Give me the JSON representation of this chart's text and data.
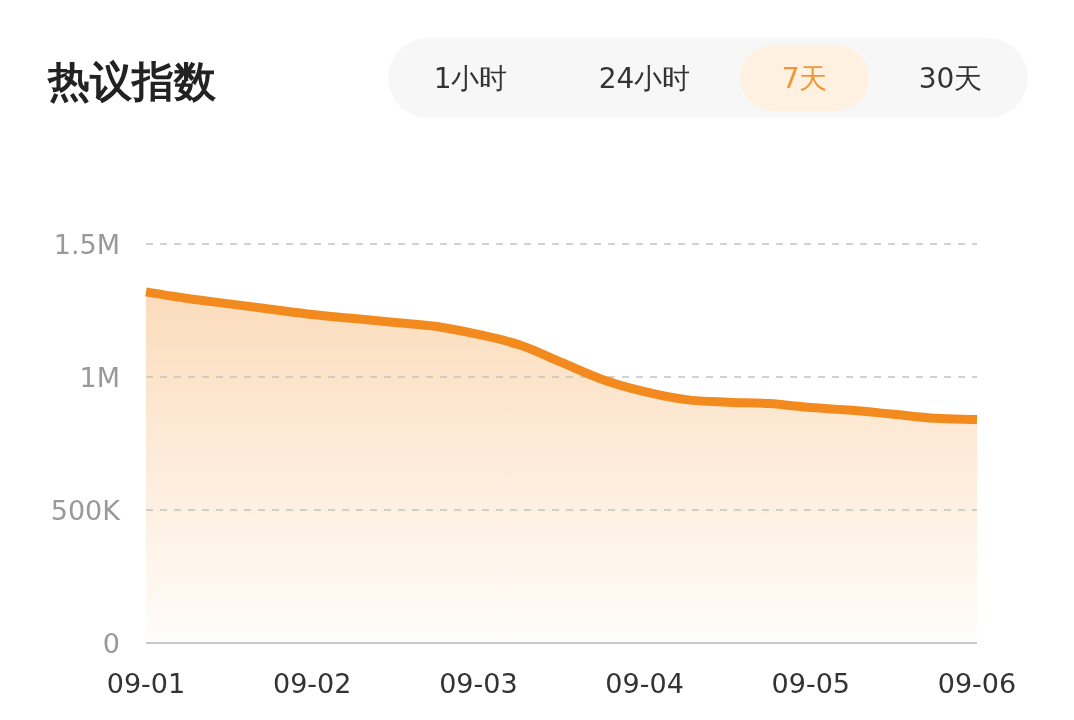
{
  "chart_data": {
    "type": "area",
    "title": "热议指数",
    "annotations": [
      "1小时",
      "24小时",
      "7天",
      "30天"
    ],
    "categories": [
      "09-01",
      null,
      null,
      null,
      "09-02",
      null,
      null,
      null,
      "09-03",
      null,
      null,
      null,
      "09-04",
      null,
      null,
      null,
      "09-05",
      null,
      null,
      null,
      "09-06"
    ],
    "ylim": [
      0,
      1500000
    ],
    "yticks": [
      0,
      {
        "value": 500000,
        "label": "500K"
      },
      {
        "value": 1000000,
        "label": "1M"
      },
      {
        "value": 1500000,
        "label": "1.5M"
      }
    ],
    "grid": "y",
    "series": [
      {
        "color": "#f28a1e",
        "values": [
          1320000,
          1295000,
          1275000,
          1255000,
          1235000,
          1220000,
          1205000,
          1190000,
          1160000,
          1120000,
          1055000,
          990000,
          945000,
          915000,
          905000,
          900000,
          885000,
          875000,
          860000,
          845000,
          840000
        ]
      }
    ]
  }
}
